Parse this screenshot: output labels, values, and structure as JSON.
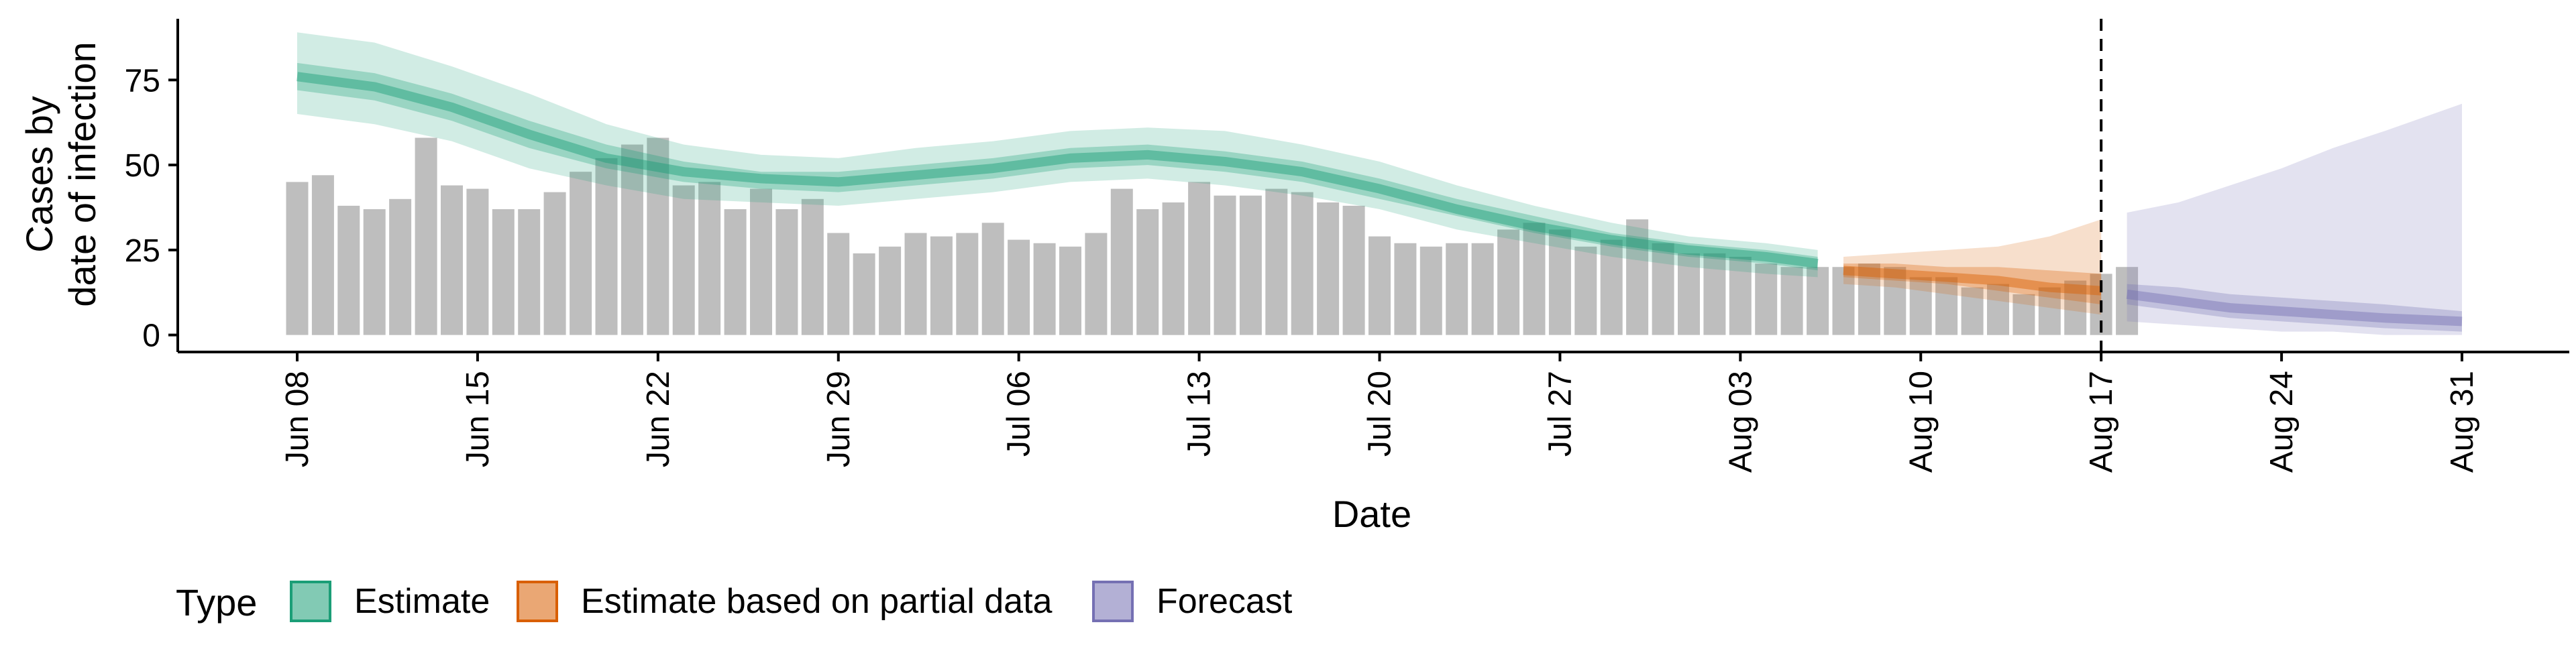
{
  "chart_data": {
    "type": "bar",
    "xlabel": "Date",
    "ylabel_lines": [
      "Cases by",
      "date of infection"
    ],
    "ylim": [
      -5,
      93
    ],
    "y_ticks": [
      0,
      25,
      50,
      75
    ],
    "x_range": [
      "2020-06-08",
      "2020-08-31"
    ],
    "x_ticks": [
      {
        "date": "2020-06-08",
        "label": "Jun 08"
      },
      {
        "date": "2020-06-15",
        "label": "Jun 15"
      },
      {
        "date": "2020-06-22",
        "label": "Jun 22"
      },
      {
        "date": "2020-06-29",
        "label": "Jun 29"
      },
      {
        "date": "2020-07-06",
        "label": "Jul 06"
      },
      {
        "date": "2020-07-13",
        "label": "Jul 13"
      },
      {
        "date": "2020-07-20",
        "label": "Jul 20"
      },
      {
        "date": "2020-07-27",
        "label": "Jul 27"
      },
      {
        "date": "2020-08-03",
        "label": "Aug 03"
      },
      {
        "date": "2020-08-10",
        "label": "Aug 10"
      },
      {
        "date": "2020-08-17",
        "label": "Aug 17"
      },
      {
        "date": "2020-08-24",
        "label": "Aug 24"
      },
      {
        "date": "2020-08-31",
        "label": "Aug 31"
      }
    ],
    "forecast_date": "2020-08-17",
    "bars": {
      "start_date": "2020-06-08",
      "color": "#bebebe",
      "values": [
        45,
        47,
        38,
        37,
        40,
        58,
        44,
        43,
        37,
        37,
        42,
        48,
        52,
        56,
        58,
        44,
        45,
        37,
        43,
        37,
        40,
        30,
        24,
        26,
        30,
        29,
        30,
        33,
        28,
        27,
        26,
        30,
        43,
        37,
        39,
        45,
        41,
        41,
        43,
        42,
        39,
        38,
        29,
        27,
        26,
        27,
        27,
        31,
        33,
        31,
        26,
        28,
        34,
        27,
        24,
        24,
        23,
        21,
        20,
        20,
        20,
        21,
        20,
        17,
        17,
        14,
        15,
        12,
        14,
        16,
        18,
        20
      ]
    },
    "series": [
      {
        "name": "Estimate",
        "color": "#1b9e77",
        "x": [
          "2020-06-08",
          "2020-06-11",
          "2020-06-14",
          "2020-06-17",
          "2020-06-20",
          "2020-06-23",
          "2020-06-26",
          "2020-06-29",
          "2020-07-02",
          "2020-07-05",
          "2020-07-08",
          "2020-07-11",
          "2020-07-14",
          "2020-07-17",
          "2020-07-20",
          "2020-07-23",
          "2020-07-26",
          "2020-07-29",
          "2020-08-01",
          "2020-08-04",
          "2020-08-06"
        ],
        "median": [
          76,
          73,
          67,
          59,
          52,
          48,
          46,
          45,
          47,
          49,
          52,
          53,
          51,
          48,
          43,
          37,
          32,
          28,
          25,
          23,
          21
        ],
        "inner_lower": [
          72,
          69,
          63,
          55,
          49,
          45,
          43,
          42,
          44,
          46,
          49,
          50,
          48,
          45,
          40,
          35,
          30,
          26,
          23,
          21,
          19
        ],
        "inner_upper": [
          80,
          77,
          71,
          63,
          56,
          51,
          48,
          48,
          50,
          52,
          55,
          56,
          54,
          51,
          46,
          40,
          35,
          30,
          27,
          25,
          23
        ],
        "outer_lower": [
          65,
          62,
          57,
          49,
          44,
          40,
          39,
          38,
          40,
          42,
          45,
          46,
          44,
          41,
          37,
          31,
          27,
          23,
          20,
          18,
          17
        ],
        "outer_upper": [
          89,
          86,
          79,
          71,
          62,
          56,
          53,
          52,
          55,
          57,
          60,
          61,
          60,
          56,
          51,
          44,
          38,
          33,
          29,
          27,
          25
        ]
      },
      {
        "name": "Estimate based on partial data",
        "color": "#d95f02",
        "x": [
          "2020-08-07",
          "2020-08-09",
          "2020-08-11",
          "2020-08-13",
          "2020-08-15",
          "2020-08-17"
        ],
        "median": [
          19,
          18,
          17,
          16,
          14,
          13
        ],
        "inner_lower": [
          17,
          16,
          15,
          13,
          11,
          9
        ],
        "inner_upper": [
          21,
          21,
          20,
          20,
          19,
          18
        ],
        "outer_lower": [
          15,
          14,
          12,
          10,
          8,
          6
        ],
        "outer_upper": [
          23,
          24,
          25,
          26,
          29,
          34
        ]
      },
      {
        "name": "Forecast",
        "color": "#7570b3",
        "x": [
          "2020-08-18",
          "2020-08-20",
          "2020-08-22",
          "2020-08-24",
          "2020-08-26",
          "2020-08-28",
          "2020-08-31"
        ],
        "median": [
          12,
          10,
          8,
          7,
          6,
          5,
          4
        ],
        "inner_lower": [
          9,
          7,
          5,
          4,
          3,
          2,
          1
        ],
        "inner_upper": [
          15,
          14,
          12,
          11,
          10,
          9,
          7
        ],
        "outer_lower": [
          4,
          3,
          2,
          1,
          1,
          0,
          0
        ],
        "outer_upper": [
          36,
          39,
          44,
          49,
          55,
          60,
          68
        ]
      }
    ],
    "legend": {
      "title": "Type",
      "position": "bottom-left",
      "entries": [
        "Estimate",
        "Estimate based on partial data",
        "Forecast"
      ]
    },
    "grid": false
  }
}
